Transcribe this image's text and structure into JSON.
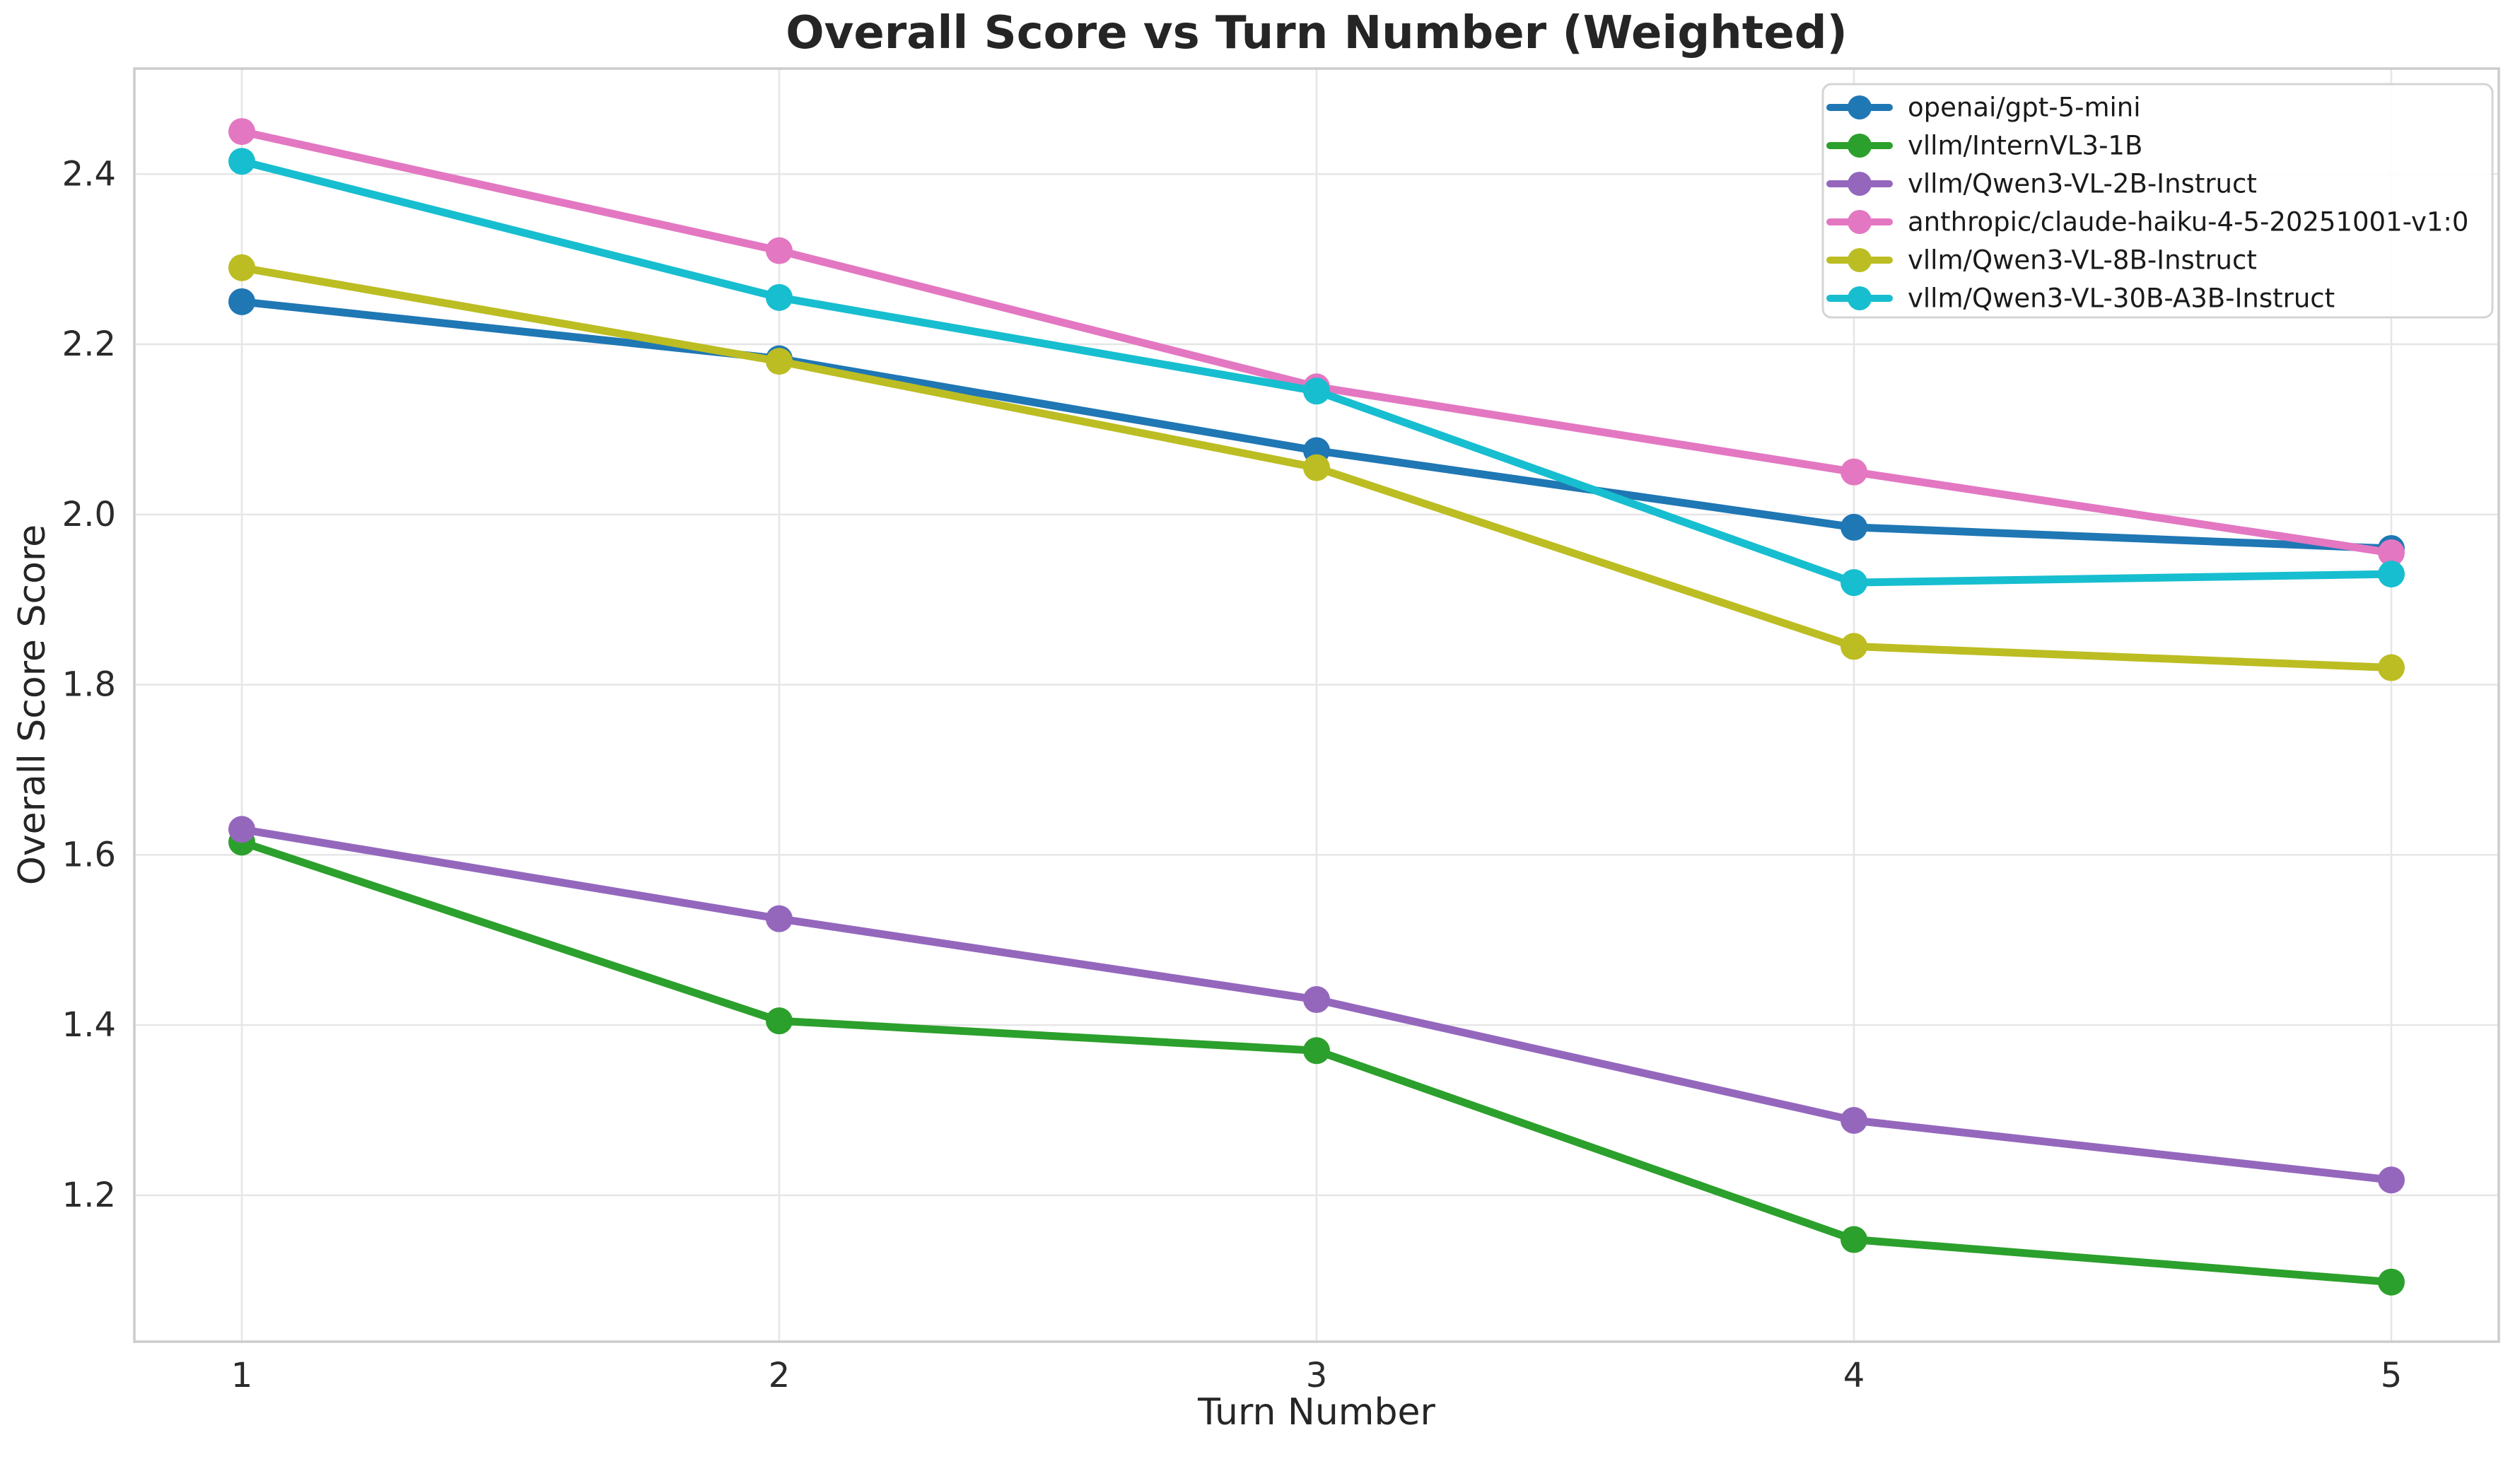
{
  "chart_data": {
    "type": "line",
    "title": "Overall Score vs Turn Number (Weighted)",
    "xlabel": "Turn Number",
    "ylabel": "Overall Score Score",
    "x": [
      1,
      2,
      3,
      4,
      5
    ],
    "xlim": [
      0.8,
      5.2
    ],
    "ylim": [
      1.028,
      2.524
    ],
    "xticks": [
      1,
      2,
      3,
      4,
      5
    ],
    "yticks": [
      1.2,
      1.4,
      1.6,
      1.8,
      2.0,
      2.2,
      2.4
    ],
    "grid": true,
    "legend_position": "upper right",
    "series": [
      {
        "name": "openai/gpt-5-mini",
        "color": "#1f77b4",
        "values": [
          2.25,
          2.183,
          2.075,
          1.985,
          1.96
        ]
      },
      {
        "name": "vllm/InternVL3-1B",
        "color": "#2ca02c",
        "values": [
          1.615,
          1.405,
          1.37,
          1.148,
          1.098
        ]
      },
      {
        "name": "vllm/Qwen3-VL-2B-Instruct",
        "color": "#9467bd",
        "values": [
          1.63,
          1.525,
          1.43,
          1.288,
          1.218
        ]
      },
      {
        "name": "anthropic/claude-haiku-4-5-20251001-v1:0",
        "color": "#e377c2",
        "values": [
          2.45,
          2.31,
          2.15,
          2.05,
          1.955
        ]
      },
      {
        "name": "vllm/Qwen3-VL-8B-Instruct",
        "color": "#bcbd22",
        "values": [
          2.29,
          2.18,
          2.055,
          1.845,
          1.82
        ]
      },
      {
        "name": "vllm/Qwen3-VL-30B-A3B-Instruct",
        "color": "#17becf",
        "values": [
          2.415,
          2.255,
          2.145,
          1.92,
          1.93
        ]
      }
    ],
    "colors": {
      "background": "#ffffff",
      "grid": "#e6e6e6",
      "spine": "#cccccc",
      "tick_text": "#2b2b2b",
      "title_text": "#252525",
      "legend_border": "#d4d4d4",
      "legend_bg": "#ffffff",
      "legend_text": "#1a1a1a"
    }
  }
}
